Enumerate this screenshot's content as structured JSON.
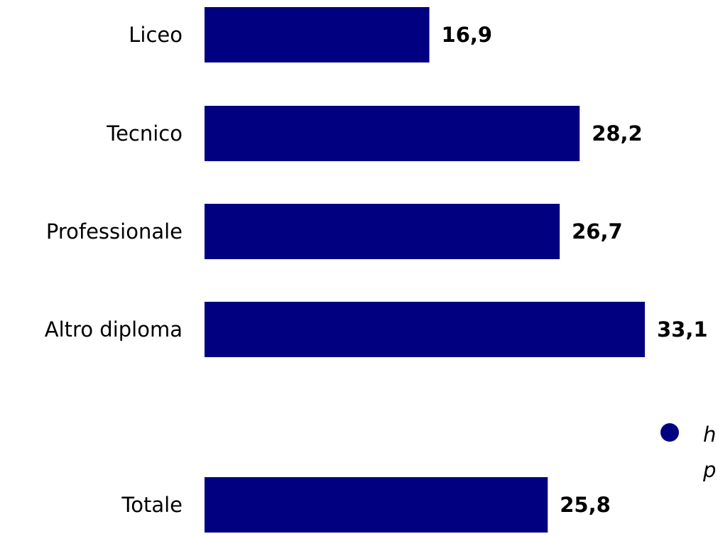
{
  "chart_data": {
    "type": "bar",
    "orientation": "horizontal",
    "categories": [
      "Liceo",
      "Tecnico",
      "Professionale",
      "Altro diploma",
      "Totale"
    ],
    "values": [
      16.9,
      28.2,
      26.7,
      33.1,
      25.8
    ],
    "value_labels": [
      "16,9",
      "28,2",
      "26,7",
      "33,1",
      "25,8"
    ],
    "color": "#000080",
    "xlim": [
      0,
      38.6
    ],
    "annotation": [
      "h",
      "p"
    ]
  }
}
